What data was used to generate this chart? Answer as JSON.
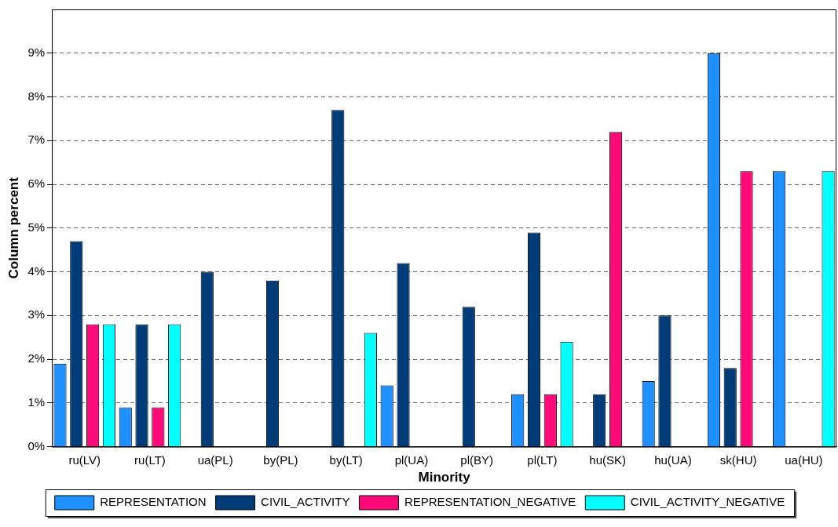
{
  "chart_data": {
    "type": "bar",
    "xlabel": "Minority",
    "ylabel": "Column percent",
    "categories": [
      "ru(LV)",
      "ru(LT)",
      "ua(PL)",
      "by(PL)",
      "by(LT)",
      "pl(UA)",
      "pl(BY)",
      "pl(LT)",
      "hu(SK)",
      "hu(UA)",
      "sk(HU)",
      "ua(HU)"
    ],
    "series": [
      {
        "name": "REPRESENTATION",
        "color": "#1e90ff",
        "values": [
          1.9,
          0.9,
          0,
          0,
          0,
          1.4,
          0,
          1.2,
          0,
          1.5,
          9.0,
          6.3
        ]
      },
      {
        "name": "CIVIL_ACTIVITY",
        "color": "#003c78",
        "values": [
          4.7,
          2.8,
          4.0,
          3.8,
          7.7,
          4.2,
          3.2,
          4.9,
          1.2,
          3.0,
          1.8,
          0
        ]
      },
      {
        "name": "REPRESENTATION_NEGATIVE",
        "color": "#ff0a78",
        "values": [
          2.8,
          0.9,
          0,
          0,
          0,
          0,
          0,
          1.2,
          7.2,
          0,
          6.3,
          0
        ]
      },
      {
        "name": "CIVIL_ACTIVITY_NEGATIVE",
        "color": "#00ffff",
        "values": [
          2.8,
          2.8,
          0,
          0,
          2.6,
          0,
          0,
          2.4,
          0,
          0,
          0,
          6.3
        ]
      }
    ],
    "ylim": [
      0,
      10
    ],
    "yticks": [
      {
        "value": 0,
        "label": "0%"
      },
      {
        "value": 1,
        "label": "1%"
      },
      {
        "value": 2,
        "label": "2%"
      },
      {
        "value": 3,
        "label": "3%"
      },
      {
        "value": 4,
        "label": "4%"
      },
      {
        "value": 5,
        "label": "5%"
      },
      {
        "value": 6,
        "label": "6%"
      },
      {
        "value": 7,
        "label": "7%"
      },
      {
        "value": 8,
        "label": "8%"
      },
      {
        "value": 9,
        "label": "9%"
      }
    ],
    "grid": "y",
    "legend": "bottom"
  }
}
